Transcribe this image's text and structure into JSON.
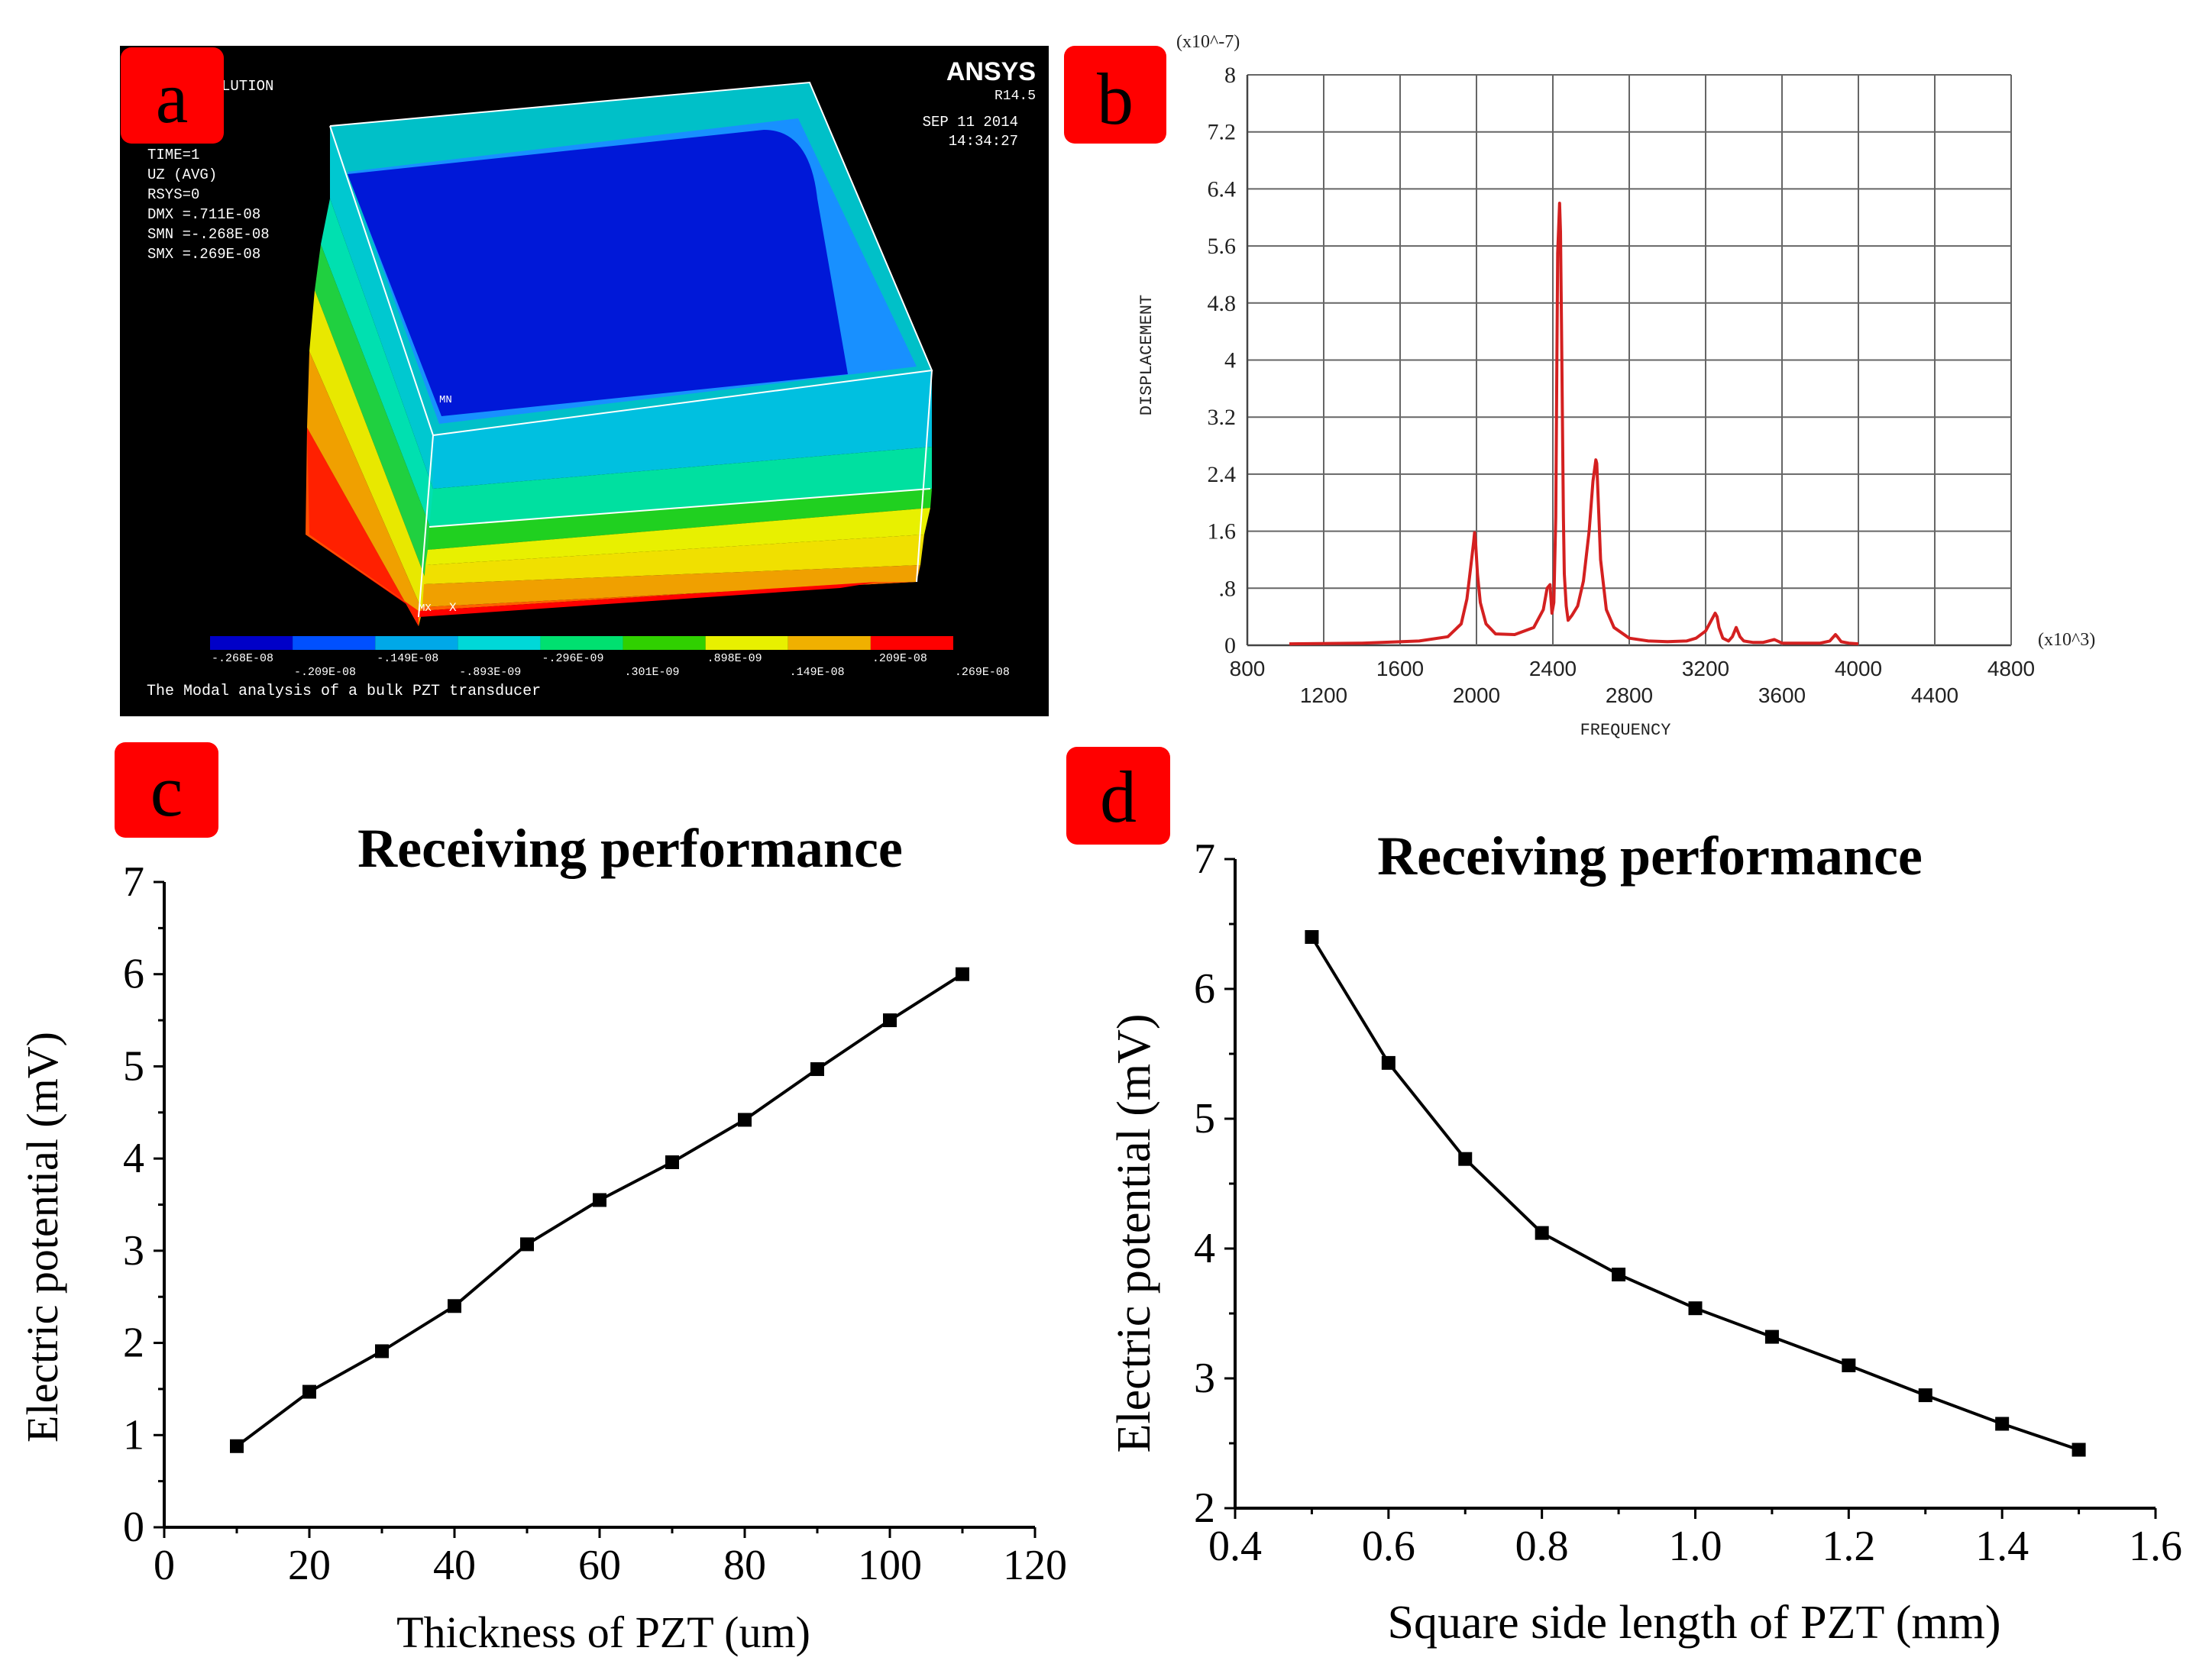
{
  "panel_labels": {
    "a": "a",
    "b": "b",
    "c": "c",
    "d": "d"
  },
  "colors": {
    "label_box": "#ff0000",
    "label_text": "#000000",
    "ansys_bg": "#000000",
    "peak_line": "#d42020",
    "marker": "#000000"
  },
  "ansys": {
    "header_left": "LUTION",
    "brand": "ANSYS",
    "version": "R14.5",
    "date": "SEP 11 2014",
    "time": "14:34:27",
    "info": [
      "TIME=1",
      "UZ        (AVG)",
      "RSYS=0",
      "DMX =.711E-08",
      "SMN =-.268E-08",
      "SMX =.269E-08"
    ],
    "mn_label": "MN",
    "mx_label": "MX",
    "axis_label": "X",
    "caption": "The Modal analysis of a bulk PZT transducer",
    "legend_colors": [
      "#0000c8",
      "#0050ff",
      "#00a8e8",
      "#00d8d8",
      "#00e070",
      "#30d000",
      "#e8f000",
      "#f0b000",
      "#ff0000"
    ],
    "legend_top_labels": [
      "-.268E-08",
      "-.149E-08",
      "-.296E-09",
      ".898E-09",
      ".209E-08"
    ],
    "legend_bottom_labels": [
      "-.209E-08",
      "-.893E-09",
      ".301E-09",
      ".149E-08",
      ".269E-08"
    ]
  },
  "chart_data": [
    {
      "panel": "b",
      "type": "line",
      "title": "",
      "xlabel": "FREQUENCY",
      "ylabel": "DISPLACEMENT",
      "x_multiplier": "(x10^3)",
      "y_multiplier": "(x10^-7)",
      "xlim": [
        800,
        4800
      ],
      "ylim": [
        0,
        8
      ],
      "x_ticks_upper": [
        "800",
        "1600",
        "2400",
        "3200",
        "4000",
        "4800"
      ],
      "x_ticks_lower": [
        "1200",
        "2000",
        "2800",
        "3600",
        "4400"
      ],
      "y_ticks": [
        "0",
        ".8",
        "1.6",
        "2.4",
        "3.2",
        "4",
        "4.8",
        "5.6",
        "6.4",
        "7.2",
        "8"
      ],
      "grid": true,
      "series": [
        {
          "x": [
            1020,
            1400,
            1700,
            1850,
            1920,
            1950,
            1970,
            1985,
            1990,
            1995,
            2005,
            2020,
            2050,
            2100,
            2200,
            2300,
            2350,
            2370,
            2385,
            2395,
            2405,
            2415,
            2425,
            2435,
            2440,
            2445,
            2455,
            2460,
            2470,
            2480,
            2500,
            2530,
            2560,
            2590,
            2610,
            2625,
            2630,
            2635,
            2650,
            2680,
            2720,
            2800,
            2900,
            3000,
            3100,
            3150,
            3200,
            3230,
            3250,
            3260,
            3270,
            3290,
            3320,
            3340,
            3360,
            3380,
            3400,
            3450,
            3500,
            3560,
            3600,
            3700,
            3800,
            3850,
            3870,
            3880,
            3890,
            3910,
            3950,
            4000
          ],
          "y": [
            0.02,
            0.03,
            0.06,
            0.12,
            0.3,
            0.65,
            1.1,
            1.45,
            1.58,
            1.45,
            1.0,
            0.6,
            0.3,
            0.16,
            0.15,
            0.25,
            0.5,
            0.8,
            0.85,
            0.45,
            0.6,
            1.8,
            5.5,
            6.2,
            5.8,
            4.5,
            1.8,
            1.0,
            0.55,
            0.35,
            0.42,
            0.55,
            0.9,
            1.6,
            2.3,
            2.6,
            2.55,
            2.2,
            1.2,
            0.5,
            0.25,
            0.1,
            0.06,
            0.05,
            0.06,
            0.1,
            0.2,
            0.35,
            0.45,
            0.4,
            0.25,
            0.1,
            0.06,
            0.12,
            0.25,
            0.12,
            0.06,
            0.04,
            0.04,
            0.08,
            0.03,
            0.03,
            0.03,
            0.06,
            0.12,
            0.15,
            0.12,
            0.05,
            0.03,
            0.02
          ]
        }
      ]
    },
    {
      "panel": "c",
      "type": "line",
      "title": "Receiving performance",
      "xlabel": "Thickness of PZT (um)",
      "ylabel": "Electric potential (mV)",
      "xlim": [
        0,
        120
      ],
      "ylim": [
        0,
        7
      ],
      "x_ticks": [
        0,
        20,
        40,
        60,
        80,
        100,
        120
      ],
      "y_ticks": [
        0,
        1,
        2,
        3,
        4,
        5,
        6,
        7
      ],
      "grid": false,
      "series": [
        {
          "x": [
            10,
            20,
            30,
            40,
            50,
            60,
            70,
            80,
            90,
            100,
            110
          ],
          "y": [
            0.88,
            1.47,
            1.91,
            2.4,
            3.07,
            3.55,
            3.96,
            4.42,
            4.97,
            5.5,
            6.0
          ]
        }
      ]
    },
    {
      "panel": "d",
      "type": "line",
      "title": "Receiving performance",
      "xlabel": "Square side length of PZT (mm)",
      "ylabel": "Electric potential (mV)",
      "xlim": [
        0.4,
        1.6
      ],
      "ylim": [
        2,
        7
      ],
      "x_ticks": [
        "0.4",
        "0.6",
        "0.8",
        "1.0",
        "1.2",
        "1.4",
        "1.6"
      ],
      "y_ticks": [
        2,
        3,
        4,
        5,
        6,
        7
      ],
      "grid": false,
      "series": [
        {
          "x": [
            0.5,
            0.6,
            0.7,
            0.8,
            0.9,
            1.0,
            1.1,
            1.2,
            1.3,
            1.4,
            1.5
          ],
          "y": [
            6.4,
            5.43,
            4.69,
            4.12,
            3.8,
            3.54,
            3.32,
            3.1,
            2.87,
            2.65,
            2.45
          ]
        }
      ]
    }
  ]
}
